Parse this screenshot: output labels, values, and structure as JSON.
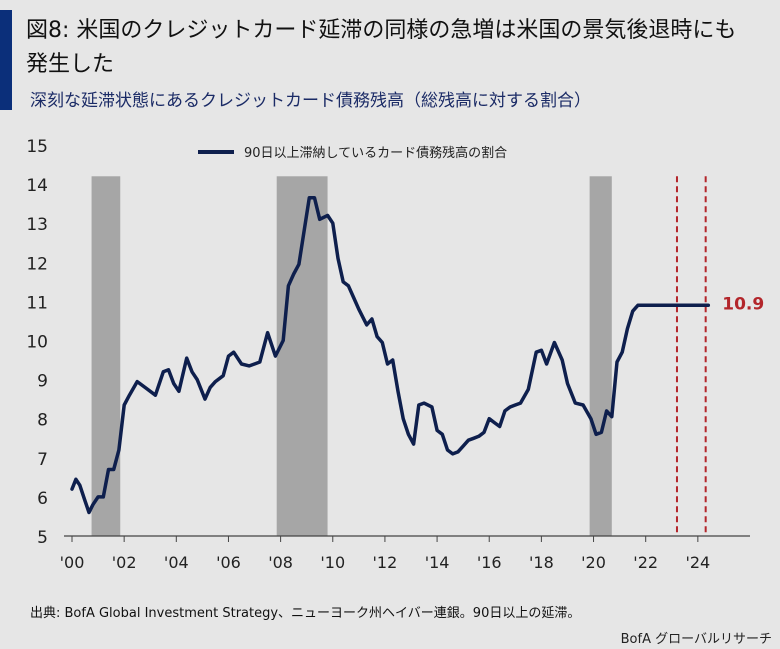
{
  "header": {
    "title": "図8: 米国のクレジットカード延滞の同様の急増は米国の景気後退時にも発生した",
    "subtitle": "深刻な延滞状態にあるクレジットカード債務残高（総残高に対する割合）"
  },
  "footer": {
    "source": "出典: BofA Global Investment Strategy、ニューヨーク州ヘイバー連銀。90日以上の延滞。",
    "credit": "BofA グローバルリサーチ"
  },
  "colors": {
    "line": "#0e1f4d",
    "recession": "#a6a6a6",
    "marker": "#b3262b",
    "accent": "#0b2f7a"
  },
  "chart_data": {
    "type": "line",
    "title": "図8: 米国のクレジットカード延滞の同様の急増は米国の景気後退時にも発生した",
    "subtitle": "深刻な延滞状態にあるクレジットカード債務残高（総残高に対する割合）",
    "xlabel": "",
    "ylabel": "",
    "xlim": [
      2000,
      2026
    ],
    "ylim": [
      5,
      15
    ],
    "x_ticks": [
      2000,
      2002,
      2004,
      2006,
      2008,
      2010,
      2012,
      2014,
      2016,
      2018,
      2020,
      2022,
      2024
    ],
    "x_tick_labels": [
      "'00",
      "'02",
      "'04",
      "'06",
      "'08",
      "'10",
      "'12",
      "'14",
      "'16",
      "'18",
      "'20",
      "'22",
      "'24"
    ],
    "y_ticks": [
      5,
      6,
      7,
      8,
      9,
      10,
      11,
      12,
      13,
      14,
      15
    ],
    "y_tick_labels": [
      "5",
      "6",
      "7",
      "8",
      "9",
      "10",
      "11",
      "12",
      "13",
      "14",
      "15"
    ],
    "grid": false,
    "legend": {
      "position": "top-center",
      "entries": [
        "90日以上滞納しているカード債務残高の割合"
      ]
    },
    "recessions": [
      [
        2000.75,
        2001.85
      ],
      [
        2007.85,
        2009.8
      ],
      [
        2019.85,
        2020.7
      ]
    ],
    "vertical_markers": [
      2023.2,
      2024.3
    ],
    "series": [
      {
        "name": "90日以上滞納しているカード債務残高の割合",
        "x": [
          2000.0,
          2000.15,
          2000.3,
          2000.5,
          2000.65,
          2000.8,
          2001.0,
          2001.2,
          2001.4,
          2001.6,
          2001.8,
          2002.0,
          2002.2,
          2002.5,
          2002.8,
          2003.2,
          2003.5,
          2003.7,
          2003.9,
          2004.1,
          2004.4,
          2004.6,
          2004.8,
          2005.1,
          2005.3,
          2005.5,
          2005.8,
          2006.0,
          2006.2,
          2006.5,
          2006.8,
          2007.0,
          2007.2,
          2007.5,
          2007.8,
          2008.1,
          2008.3,
          2008.5,
          2008.7,
          2008.9,
          2009.1,
          2009.3,
          2009.5,
          2009.8,
          2010.0,
          2010.2,
          2010.4,
          2010.6,
          2010.8,
          2011.0,
          2011.3,
          2011.5,
          2011.7,
          2011.9,
          2012.1,
          2012.3,
          2012.5,
          2012.7,
          2012.9,
          2013.1,
          2013.3,
          2013.5,
          2013.8,
          2014.0,
          2014.2,
          2014.4,
          2014.6,
          2014.8,
          2015.0,
          2015.2,
          2015.4,
          2015.6,
          2015.8,
          2016.0,
          2016.2,
          2016.4,
          2016.6,
          2016.8,
          2017.0,
          2017.2,
          2017.5,
          2017.8,
          2018.0,
          2018.2,
          2018.5,
          2018.8,
          2019.0,
          2019.3,
          2019.6,
          2019.9,
          2020.1,
          2020.3,
          2020.5,
          2020.7,
          2020.9,
          2021.1,
          2021.3,
          2021.5,
          2021.7,
          2021.9,
          2022.1,
          2022.3,
          2022.5,
          2022.7,
          2022.9,
          2023.1,
          2023.3,
          2023.5,
          2023.7,
          2023.9,
          2024.1,
          2024.4
        ],
        "values": [
          6.2,
          6.45,
          6.3,
          5.9,
          5.6,
          5.8,
          6.0,
          6.0,
          6.7,
          6.7,
          7.2,
          8.35,
          8.6,
          8.95,
          8.8,
          8.6,
          9.2,
          9.25,
          8.9,
          8.7,
          9.55,
          9.2,
          9.0,
          8.5,
          8.8,
          8.95,
          9.1,
          9.6,
          9.7,
          9.4,
          9.35,
          9.4,
          9.45,
          10.2,
          9.6,
          10.0,
          11.4,
          11.7,
          11.95,
          12.8,
          13.65,
          13.65,
          13.1,
          13.2,
          13.0,
          12.1,
          11.5,
          11.4,
          11.1,
          10.8,
          10.4,
          10.55,
          10.1,
          9.95,
          9.4,
          9.5,
          8.7,
          8.0,
          7.6,
          7.35,
          8.35,
          8.4,
          8.3,
          7.7,
          7.6,
          7.2,
          7.1,
          7.15,
          7.3,
          7.45,
          7.5,
          7.55,
          7.65,
          8.0,
          7.9,
          7.8,
          8.2,
          8.3,
          8.35,
          8.4,
          8.75,
          9.7,
          9.75,
          9.4,
          9.95,
          9.5,
          8.9,
          8.4,
          8.35,
          8.0,
          7.6,
          7.65,
          8.2,
          8.05,
          9.45,
          9.7,
          10.3,
          10.75,
          10.9,
          10.9,
          10.9,
          10.9,
          10.9,
          10.9,
          10.9,
          10.9,
          10.9,
          10.9,
          10.9,
          10.9,
          10.9,
          10.9
        ]
      }
    ],
    "annotations": [
      {
        "x": 2024.4,
        "y": 10.9,
        "text": "10.9"
      }
    ]
  }
}
